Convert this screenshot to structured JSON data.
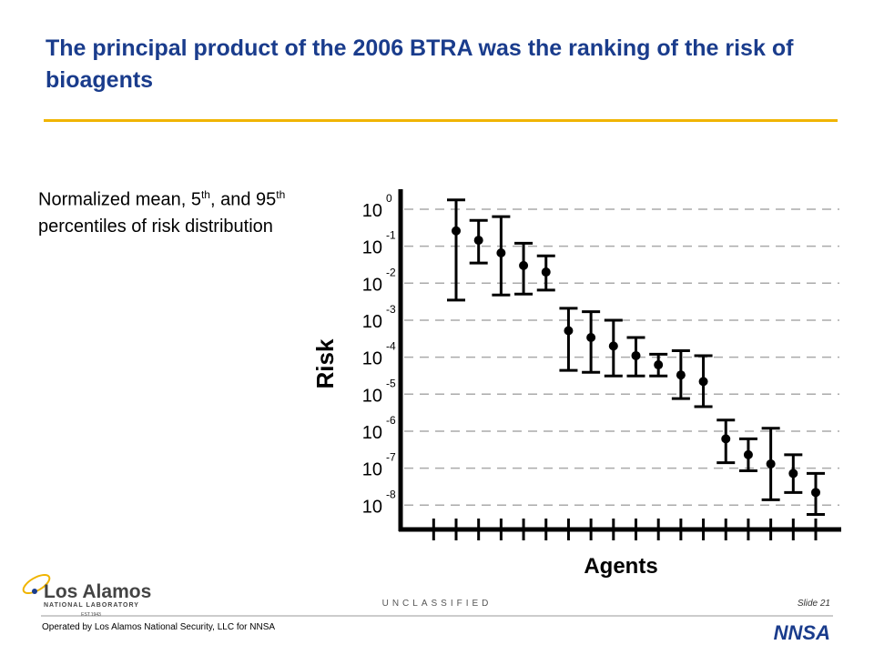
{
  "header": {
    "title": "The principal product of the 2006 BTRA was the ranking of the risk of bioagents"
  },
  "annotation": [
    "Normalized mean, 5",
    "th",
    ", and 95",
    "th",
    " percentiles of risk distribution"
  ],
  "chart_data": {
    "type": "errorbar",
    "y_label": "Risk",
    "x_label": "Agents",
    "log_y": true,
    "grid": true,
    "color": "#000000",
    "categories": [
      null,
      null,
      null,
      null,
      null,
      null,
      null,
      null,
      null,
      null,
      null,
      null,
      null,
      null,
      null,
      null,
      null
    ],
    "series": [
      {
        "values": [
          0.26,
          0.145,
          0.066,
          0.03,
          0.02,
          0.00052,
          0.00034,
          0.0002,
          0.00011,
          6.2e-05,
          3.3e-05,
          2.2e-05,
          6.2e-07,
          2.3e-07,
          1.3e-07,
          7.2e-08,
          2.2e-08
        ],
        "p5": [
          0.0035,
          0.035,
          0.0048,
          0.0051,
          0.0065,
          4.4e-05,
          3.9e-05,
          3.1e-05,
          3.1e-05,
          3.1e-05,
          7.6e-06,
          4.6e-06,
          1.4e-07,
          8.5e-08,
          1.4e-08,
          2.2e-08,
          5.6e-09
        ],
        "p95": [
          1.78,
          0.5,
          0.63,
          0.12,
          0.055,
          0.0021,
          0.0017,
          0.001,
          0.00034,
          0.00012,
          0.00015,
          0.00011,
          2e-06,
          6.2e-07,
          1.2e-06,
          2.3e-07,
          7.2e-08
        ]
      }
    ],
    "ylim": [
      2.2e-09,
      3.1
    ],
    "yticks": [
      {
        "value": 1,
        "label": "10",
        "exponent": "0"
      },
      {
        "value": 0.1,
        "label": "10",
        "exponent": "-1"
      },
      {
        "value": 0.01,
        "label": "10",
        "exponent": "-2"
      },
      {
        "value": 0.001,
        "label": "10",
        "exponent": "-3"
      },
      {
        "value": 0.0001,
        "label": "10",
        "exponent": "-4"
      },
      {
        "value": 1e-05,
        "label": "10",
        "exponent": "-5"
      },
      {
        "value": 1e-06,
        "label": "10",
        "exponent": "-6"
      },
      {
        "value": 1e-07,
        "label": "10",
        "exponent": "-7"
      },
      {
        "value": 1e-08,
        "label": "10",
        "exponent": "-8"
      }
    ]
  },
  "footer": {
    "classification": "UNCLASSIFIED",
    "slide": "Slide 21",
    "operated_by": "Operated by Los Alamos National Security, LLC for NNSA",
    "logo_name": "Los Alamos",
    "logo_sub": "NATIONAL LABORATORY",
    "logo_est": "EST.1943",
    "nnsa": "NNSA"
  }
}
